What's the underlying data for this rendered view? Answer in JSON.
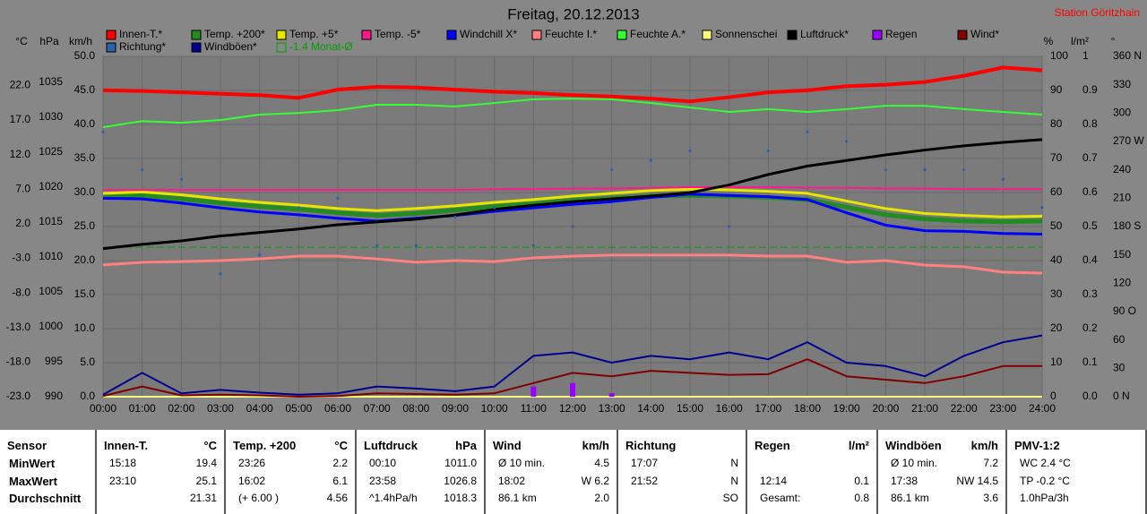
{
  "chart_data": {
    "type": "line",
    "title": "Freitag, 20.12.2013",
    "station": "Station Göritzhain",
    "xlim": [
      0,
      24
    ],
    "xticks": [
      {
        "value": 0,
        "label": "00:00"
      },
      {
        "value": 1,
        "label": "01:00"
      },
      {
        "value": 2,
        "label": "02:00"
      },
      {
        "value": 3,
        "label": "03:00"
      },
      {
        "value": 4,
        "label": "04:00"
      },
      {
        "value": 5,
        "label": "05:00"
      },
      {
        "value": 6,
        "label": "06:00"
      },
      {
        "value": 7,
        "label": "07:00"
      },
      {
        "value": 8,
        "label": "08:00"
      },
      {
        "value": 9,
        "label": "09:00"
      },
      {
        "value": 10,
        "label": "10:00"
      },
      {
        "value": 11,
        "label": "11:00"
      },
      {
        "value": 12,
        "label": "12:00"
      },
      {
        "value": 13,
        "label": "13:00"
      },
      {
        "value": 14,
        "label": "14:00"
      },
      {
        "value": 15,
        "label": "15:00"
      },
      {
        "value": 16,
        "label": "16:00"
      },
      {
        "value": 17,
        "label": "17:00"
      },
      {
        "value": 18,
        "label": "18:00"
      },
      {
        "value": 19,
        "label": "19:00"
      },
      {
        "value": 20,
        "label": "20:00"
      },
      {
        "value": 21,
        "label": "21:00"
      },
      {
        "value": 22,
        "label": "22:00"
      },
      {
        "value": 23,
        "label": "23:00"
      },
      {
        "value": 24,
        "label": "24:00"
      }
    ],
    "x": [
      0,
      1,
      2,
      3,
      4,
      5,
      6,
      7,
      8,
      9,
      10,
      11,
      12,
      13,
      14,
      15,
      16,
      17,
      18,
      19,
      20,
      21,
      22,
      23,
      24
    ],
    "axes": [
      {
        "label": "°C",
        "lim": [
          -23,
          26.2
        ],
        "ticks": [
          {
            "value": 22,
            "label": "22.0"
          },
          {
            "value": 17,
            "label": "17.0"
          },
          {
            "value": 12,
            "label": "12.0"
          },
          {
            "value": 7,
            "label": "7.0"
          },
          {
            "value": 2,
            "label": "2.0"
          },
          {
            "value": -3,
            "label": "-3.0"
          },
          {
            "value": -8,
            "label": "-8.0"
          },
          {
            "value": -13,
            "label": "-13.0"
          },
          {
            "value": -18,
            "label": "-18.0"
          },
          {
            "value": -23,
            "label": "-23.0"
          }
        ]
      },
      {
        "label": "hPa",
        "lim": [
          990,
          1038.7
        ],
        "ticks": [
          1035,
          1030,
          1025,
          1020,
          1015,
          1010,
          1005,
          1000,
          995,
          990
        ]
      },
      {
        "label": "km/h",
        "lim": [
          0,
          50
        ],
        "ticks": [
          {
            "value": 50,
            "label": "50.0"
          },
          {
            "value": 45,
            "label": "45.0"
          },
          {
            "value": 40,
            "label": "40.0"
          },
          {
            "value": 35,
            "label": "35.0"
          },
          {
            "value": 30,
            "label": "30.0"
          },
          {
            "value": 25,
            "label": "25.0"
          },
          {
            "value": 20,
            "label": "20.0"
          },
          {
            "value": 15,
            "label": "15.0"
          },
          {
            "value": 10,
            "label": "10.0"
          },
          {
            "value": 5,
            "label": "5.0"
          },
          {
            "value": 0,
            "label": "0.0"
          }
        ]
      },
      {
        "label": "%",
        "lim": [
          0,
          100
        ],
        "ticks": [
          100,
          90,
          80,
          70,
          60,
          50,
          40,
          30,
          20,
          10,
          0
        ]
      },
      {
        "label": "l/m²",
        "lim": [
          0,
          1
        ],
        "ticks": [
          1,
          0.9,
          0.8,
          0.7,
          0.6,
          0.5,
          0.4,
          0.3,
          0.2,
          0.1,
          {
            "value": 0,
            "label": "0.0"
          }
        ]
      },
      {
        "label": "°",
        "lim": [
          0,
          360
        ],
        "ticks": [
          {
            "value": 360,
            "label": "360 N"
          },
          330,
          300,
          {
            "value": 270,
            "label": "270 W"
          },
          240,
          210,
          {
            "value": 180,
            "label": "180 S"
          },
          150,
          120,
          {
            "value": 90,
            "label": "90 O"
          },
          60,
          30,
          {
            "value": 0,
            "label": "0 N"
          }
        ]
      }
    ],
    "grid": true,
    "series": [
      {
        "name": "Innen-T.*",
        "color": "#ff0000",
        "axis": 0,
        "values": [
          21.3,
          21.2,
          21.0,
          20.8,
          20.6,
          20.2,
          21.4,
          21.8,
          21.7,
          21.4,
          21.1,
          20.9,
          20.6,
          20.4,
          20.1,
          19.7,
          20.3,
          21.0,
          21.3,
          21.9,
          22.1,
          22.5,
          23.4,
          24.6,
          24.2
        ]
      },
      {
        "name": "Temp. +200*",
        "color": "#228b22",
        "axis": 0,
        "values": [
          5.8,
          6.1,
          5.6,
          5.0,
          4.5,
          4.1,
          3.6,
          3.2,
          3.5,
          4.0,
          4.5,
          4.9,
          5.4,
          5.7,
          6.0,
          6.1,
          6.0,
          5.8,
          5.5,
          4.4,
          3.3,
          2.7,
          2.4,
          2.3,
          2.4
        ]
      },
      {
        "name": "Temp. +5*",
        "color": "#e6e600",
        "axis": 0,
        "values": [
          6.4,
          6.6,
          6.2,
          5.6,
          5.1,
          4.7,
          4.2,
          3.9,
          4.2,
          4.6,
          5.1,
          5.5,
          6.0,
          6.4,
          6.8,
          7.0,
          6.9,
          6.7,
          6.4,
          5.3,
          4.2,
          3.5,
          3.2,
          3.0,
          3.1
        ]
      },
      {
        "name": "Temp. -5*",
        "color": "#ff1a8c",
        "axis": 0,
        "values": [
          6.9,
          6.9,
          6.9,
          6.9,
          6.9,
          6.9,
          6.9,
          6.9,
          6.9,
          6.9,
          7.0,
          7.0,
          7.1,
          7.1,
          7.2,
          7.3,
          7.3,
          7.3,
          7.2,
          7.2,
          7.1,
          7.1,
          7.0,
          7.0,
          7.0
        ]
      },
      {
        "name": "Windchill X*",
        "color": "#0000ff",
        "axis": 0,
        "values": [
          5.7,
          5.6,
          5.0,
          4.3,
          3.7,
          3.3,
          2.8,
          2.4,
          2.8,
          3.2,
          3.8,
          4.3,
          4.8,
          5.2,
          5.8,
          6.3,
          6.1,
          5.9,
          5.5,
          3.6,
          1.8,
          1.0,
          0.9,
          0.6,
          0.5
        ]
      },
      {
        "name": "Feuchte I.*",
        "color": "#ff8080",
        "axis": 3,
        "values": [
          38.7,
          39.5,
          39.7,
          40,
          40.5,
          41.3,
          41.3,
          40.5,
          39.5,
          40,
          39.7,
          40.8,
          41.3,
          41.6,
          41.6,
          41.6,
          41.6,
          41.3,
          41.3,
          39.5,
          40,
          38.7,
          38.2,
          36.6,
          36.3
        ]
      },
      {
        "name": "Feuchte A.*",
        "color": "#33ff33",
        "axis": 3,
        "values": [
          79.2,
          81,
          80.5,
          81.3,
          82.9,
          83.4,
          84.2,
          85.8,
          85.8,
          85.3,
          86.3,
          87.4,
          87.6,
          87.4,
          86.3,
          85,
          83.7,
          84.5,
          83.7,
          84.5,
          85.5,
          85.5,
          84.5,
          83.7,
          82.9
        ]
      },
      {
        "name": "Sonnenschei",
        "color": "#ffff80",
        "axis": 3,
        "values": [
          0,
          0,
          0,
          0,
          0,
          0,
          0,
          0,
          0,
          0,
          0,
          0,
          0,
          0,
          0,
          0,
          0,
          0,
          0,
          0,
          0,
          0,
          0,
          0,
          0
        ]
      },
      {
        "name": "Luftdruck*",
        "color": "#000000",
        "axis": 1,
        "values": [
          1011.2,
          1011.8,
          1012.3,
          1013.0,
          1013.5,
          1014.0,
          1014.6,
          1015.0,
          1015.4,
          1016.0,
          1016.8,
          1017.4,
          1017.9,
          1018.3,
          1018.7,
          1019.2,
          1020.3,
          1021.8,
          1023.0,
          1023.8,
          1024.6,
          1025.3,
          1025.9,
          1026.4,
          1026.8
        ]
      },
      {
        "name": "Regen",
        "color": "#9900ff",
        "axis": 4,
        "kind": "bar",
        "values": [
          0,
          0,
          0,
          0,
          0,
          0,
          0,
          0,
          0,
          0,
          0,
          0.03,
          0.04,
          0.01,
          0,
          0,
          0,
          0,
          0,
          0,
          0,
          0,
          0,
          0,
          0
        ]
      },
      {
        "name": "Wind*",
        "color": "#800000",
        "axis": 2,
        "values": [
          0.1,
          1.5,
          0.2,
          0.3,
          0.2,
          0,
          0.1,
          0.5,
          0.4,
          0.3,
          0.5,
          2.0,
          3.5,
          3.0,
          3.8,
          3.5,
          3.2,
          3.3,
          5.5,
          3.0,
          2.5,
          2.0,
          3.0,
          4.5,
          4.5
        ]
      },
      {
        "name": "Richtung*",
        "color": "#2a64a8",
        "axis": 5,
        "kind": "dots",
        "values": [
          280,
          240,
          230,
          130,
          150,
          200,
          210,
          160,
          160,
          190,
          200,
          160,
          180,
          240,
          250,
          260,
          180,
          260,
          280,
          270,
          240,
          240,
          240,
          230,
          200
        ]
      },
      {
        "name": "Windböen*",
        "color": "#000090",
        "axis": 2,
        "values": [
          0.3,
          3.5,
          0.5,
          1.0,
          0.6,
          0.3,
          0.5,
          1.5,
          1.2,
          0.8,
          1.5,
          6.0,
          6.5,
          5.0,
          6.0,
          5.5,
          6.5,
          5.5,
          8.0,
          5.0,
          4.5,
          3.0,
          6.0,
          8.0,
          9.0
        ]
      }
    ],
    "monthly_average": {
      "label": "-1.4 Monat-Ø",
      "value": -1.4,
      "axis": 0,
      "color": "#00a000"
    }
  },
  "table": {
    "columns": [
      {
        "header": "Sensor",
        "rows": [
          {
            "left": "MinWert"
          },
          {
            "left": "MaxWert"
          },
          {
            "left": "Durchschnitt"
          }
        ]
      },
      {
        "header": "Innen-T.",
        "unit": "°C",
        "rows": [
          {
            "left": "15:18",
            "right": "19.4"
          },
          {
            "left": "23:10",
            "right": "25.1"
          },
          {
            "right": "21.31"
          }
        ]
      },
      {
        "header": "Temp. +200",
        "unit": "°C",
        "rows": [
          {
            "left": "23:26",
            "right": "2.2"
          },
          {
            "left": "16:02",
            "right": "6.1"
          },
          {
            "left": "(+ 6.00 )",
            "right": "4.56"
          }
        ]
      },
      {
        "header": "Luftdruck",
        "unit": "hPa",
        "rows": [
          {
            "left": "00:10",
            "right": "1011.0"
          },
          {
            "left": "23:58",
            "right": "1026.8"
          },
          {
            "left": "^1.4hPa/h",
            "right": "1018.3"
          }
        ]
      },
      {
        "header": "Wind",
        "unit": "km/h",
        "rows": [
          {
            "left": "Ø 10 min.",
            "right": "4.5"
          },
          {
            "left": "18:02",
            "right": "W 6.2"
          },
          {
            "left": "86.1 km",
            "right": "2.0"
          }
        ]
      },
      {
        "header": "Richtung",
        "rows": [
          {
            "left": "17:07",
            "right": "N"
          },
          {
            "left": "21:52",
            "right": "N"
          },
          {
            "right": "SO"
          }
        ]
      },
      {
        "header": "Regen",
        "unit": "l/m²",
        "rows": [
          {},
          {
            "left": "12:14",
            "right": "0.1"
          },
          {
            "left": "Gesamt:",
            "right": "0.8"
          }
        ]
      },
      {
        "header": "Windböen",
        "unit": "km/h",
        "rows": [
          {
            "left": "Ø 10 min.",
            "right": "7.2"
          },
          {
            "left": "17:38",
            "right": "NW 14.5"
          },
          {
            "left": "86.1 km",
            "right": "3.6"
          }
        ]
      },
      {
        "header": "PMV-1:2",
        "rows": [
          {
            "left": "WC 2.4 °C"
          },
          {
            "left": "TP -0.2 °C"
          },
          {
            "left": "1.0hPa/3h"
          }
        ]
      }
    ]
  }
}
